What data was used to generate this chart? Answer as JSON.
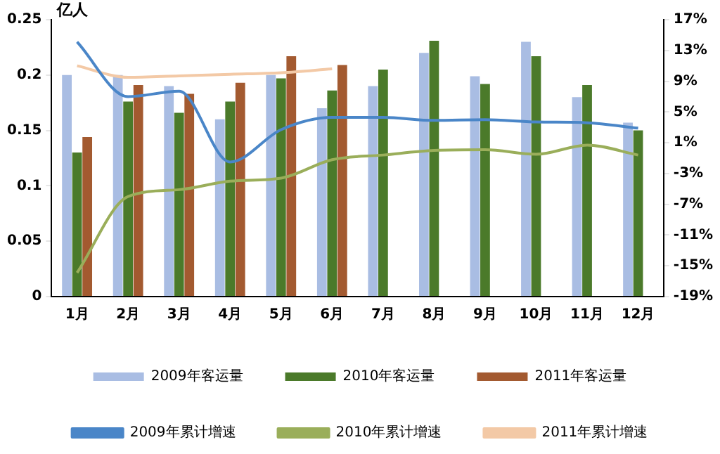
{
  "chart_data": {
    "type": "bar",
    "ylabel": "亿人",
    "categories": [
      "1月",
      "2月",
      "3月",
      "4月",
      "5月",
      "6月",
      "7月",
      "8月",
      "9月",
      "10月",
      "11月",
      "12月"
    ],
    "series": [
      {
        "name": "2009年客运量",
        "color": "#a9bde3",
        "values": [
          0.2,
          0.2,
          0.19,
          0.16,
          0.2,
          0.17,
          0.19,
          0.22,
          0.199,
          0.23,
          0.18,
          0.157
        ]
      },
      {
        "name": "2010年客运量",
        "color": "#4b7a2a",
        "values": [
          0.13,
          0.176,
          0.166,
          0.176,
          0.197,
          0.186,
          0.205,
          0.231,
          0.192,
          0.217,
          0.191,
          0.15
        ]
      },
      {
        "name": "2011年客运量",
        "color": "#a35a30",
        "values": [
          0.144,
          0.191,
          0.183,
          0.193,
          0.217,
          0.209,
          null,
          null,
          null,
          null,
          null,
          null
        ]
      },
      {
        "name": "2009年累计增速",
        "type": "line",
        "axis": "y2",
        "color": "#4a86c8",
        "values": [
          14.1,
          7.0,
          7.7,
          -1.5,
          2.7,
          4.3,
          4.3,
          3.9,
          4.0,
          3.7,
          3.6,
          2.9
        ]
      },
      {
        "name": "2010年累计增速",
        "type": "line",
        "axis": "y2",
        "color": "#9aae5a",
        "values": [
          -15.9,
          -6.0,
          -5.1,
          -4.0,
          -3.6,
          -1.2,
          -0.6,
          0.0,
          0.1,
          -0.5,
          0.7,
          -0.6
        ]
      },
      {
        "name": "2011年累计增速",
        "type": "line",
        "axis": "y2",
        "color": "#f3c9a6",
        "values": [
          11.0,
          9.5,
          9.7,
          9.9,
          10.1,
          10.6,
          null,
          null,
          null,
          null,
          null,
          null
        ]
      }
    ],
    "ylim": [
      0,
      0.25
    ],
    "yticks": [
      0,
      0.05,
      0.1,
      0.15,
      0.2,
      0.25
    ],
    "y2lim": [
      -19,
      17
    ],
    "y2ticks": [
      {
        "value": -19,
        "label": "-19%"
      },
      {
        "value": -15,
        "label": "-15%"
      },
      {
        "value": -11,
        "label": "-11%"
      },
      {
        "value": -7,
        "label": "-7%"
      },
      {
        "value": -3,
        "label": "-3%"
      },
      {
        "value": 1,
        "label": "1%"
      },
      {
        "value": 5,
        "label": "5%"
      },
      {
        "value": 9,
        "label": "9%"
      },
      {
        "value": 13,
        "label": "13%"
      },
      {
        "value": 17,
        "label": "17%"
      }
    ],
    "grid": false,
    "legend": "bottom",
    "marker": "none"
  }
}
